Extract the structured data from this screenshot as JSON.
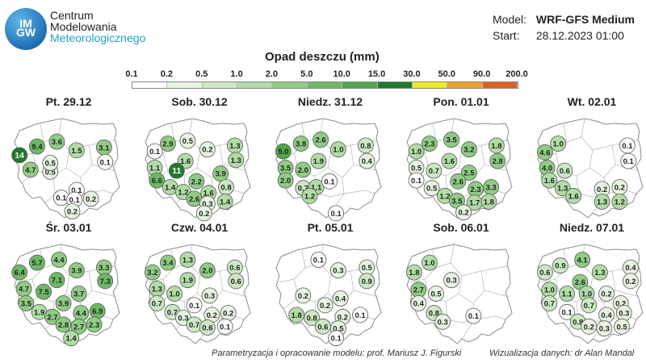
{
  "header": {
    "logo_letters": [
      "IM",
      "GW"
    ],
    "logo_lines": [
      "Centrum",
      "Modelowania",
      "Meteorologicznego"
    ],
    "model_label": "Model:",
    "model_value": "WRF-GFS Medium",
    "start_label": "Start:",
    "start_value": "28.12.2023 01:00"
  },
  "legend": {
    "title": "Opad deszczu (mm)",
    "values": [
      "0.1",
      "0.2",
      "0.5",
      "1.0",
      "2.0",
      "5.0",
      "10.0",
      "15.0",
      "30.0",
      "50.0",
      "90.0",
      "200.0"
    ],
    "colors": [
      "#ffffff",
      "#e6f3e1",
      "#cce8c4",
      "#b1dca6",
      "#8fcc84",
      "#6cba64",
      "#4ea84a",
      "#1f7a2c",
      "#ecec20",
      "#f0a02a",
      "#e06020"
    ]
  },
  "maps": [
    {
      "title": "Pt. 29.12",
      "points": [
        {
          "x": 0.06,
          "y": 0.37,
          "v": "14",
          "level": 7
        },
        {
          "x": 0.22,
          "y": 0.28,
          "v": "9.4",
          "level": 5
        },
        {
          "x": 0.4,
          "y": 0.23,
          "v": "3.6",
          "level": 4
        },
        {
          "x": 0.58,
          "y": 0.32,
          "v": "1.5",
          "level": 3
        },
        {
          "x": 0.83,
          "y": 0.29,
          "v": "3.1",
          "level": 4
        },
        {
          "x": 0.16,
          "y": 0.52,
          "v": "4.7",
          "level": 4
        },
        {
          "x": 0.34,
          "y": 0.54,
          "v": "0.5",
          "level": 1
        },
        {
          "x": 0.34,
          "y": 0.45,
          "v": "0.5",
          "level": 1
        },
        {
          "x": 0.84,
          "y": 0.44,
          "v": "0.1",
          "level": 0
        },
        {
          "x": 0.58,
          "y": 0.73,
          "v": "0.1",
          "level": 0
        },
        {
          "x": 0.44,
          "y": 0.81,
          "v": "0.1",
          "level": 0
        },
        {
          "x": 0.56,
          "y": 0.83,
          "v": "0.1",
          "level": 0
        },
        {
          "x": 0.71,
          "y": 0.82,
          "v": "0.2",
          "level": 1
        },
        {
          "x": 0.54,
          "y": 0.95,
          "v": "0.2",
          "level": 1
        }
      ]
    },
    {
      "title": "Sob. 30.12",
      "points": [
        {
          "x": 0.22,
          "y": 0.25,
          "v": "2.9",
          "level": 4
        },
        {
          "x": 0.4,
          "y": 0.22,
          "v": "0.5",
          "level": 1
        },
        {
          "x": 0.58,
          "y": 0.31,
          "v": "0.2",
          "level": 1
        },
        {
          "x": 0.83,
          "y": 0.27,
          "v": "1.3",
          "level": 3
        },
        {
          "x": 0.1,
          "y": 0.33,
          "v": "0.1",
          "level": 0
        },
        {
          "x": 0.84,
          "y": 0.42,
          "v": "1.3",
          "level": 3
        },
        {
          "x": 0.1,
          "y": 0.5,
          "v": "1.1",
          "level": 3
        },
        {
          "x": 0.38,
          "y": 0.43,
          "v": "1.6",
          "level": 3
        },
        {
          "x": 0.3,
          "y": 0.53,
          "v": "11",
          "level": 7
        },
        {
          "x": 0.7,
          "y": 0.56,
          "v": "3.9",
          "level": 4
        },
        {
          "x": 0.12,
          "y": 0.63,
          "v": "6.6",
          "level": 5
        },
        {
          "x": 0.24,
          "y": 0.7,
          "v": "1.4",
          "level": 3
        },
        {
          "x": 0.48,
          "y": 0.64,
          "v": "2.2",
          "level": 4
        },
        {
          "x": 0.75,
          "y": 0.7,
          "v": "0.8",
          "level": 2
        },
        {
          "x": 0.36,
          "y": 0.75,
          "v": "1.2",
          "level": 3
        },
        {
          "x": 0.46,
          "y": 0.82,
          "v": "2.6",
          "level": 4
        },
        {
          "x": 0.59,
          "y": 0.76,
          "v": "1.6",
          "level": 3
        },
        {
          "x": 0.58,
          "y": 0.87,
          "v": "0.3",
          "level": 1
        },
        {
          "x": 0.74,
          "y": 0.85,
          "v": "1.4",
          "level": 3
        },
        {
          "x": 0.55,
          "y": 0.97,
          "v": "0.2",
          "level": 1
        }
      ]
    },
    {
      "title": "Niedz. 31.12",
      "points": [
        {
          "x": 0.08,
          "y": 0.33,
          "v": "5.0",
          "level": 6
        },
        {
          "x": 0.24,
          "y": 0.25,
          "v": "3.8",
          "level": 4
        },
        {
          "x": 0.42,
          "y": 0.21,
          "v": "2.6",
          "level": 4
        },
        {
          "x": 0.58,
          "y": 0.31,
          "v": "1.0",
          "level": 3
        },
        {
          "x": 0.83,
          "y": 0.27,
          "v": "0.8",
          "level": 2
        },
        {
          "x": 0.4,
          "y": 0.43,
          "v": "1.9",
          "level": 3
        },
        {
          "x": 0.84,
          "y": 0.43,
          "v": "0.4",
          "level": 1
        },
        {
          "x": 0.1,
          "y": 0.5,
          "v": "3.5",
          "level": 4
        },
        {
          "x": 0.26,
          "y": 0.52,
          "v": "2.0",
          "level": 4
        },
        {
          "x": 0.1,
          "y": 0.63,
          "v": "2.0",
          "level": 4
        },
        {
          "x": 0.26,
          "y": 0.71,
          "v": "0.7",
          "level": 2
        },
        {
          "x": 0.38,
          "y": 0.7,
          "v": "1.1",
          "level": 3
        },
        {
          "x": 0.5,
          "y": 0.64,
          "v": "0.1",
          "level": 0
        },
        {
          "x": 0.32,
          "y": 0.79,
          "v": "1.2",
          "level": 3
        },
        {
          "x": 0.56,
          "y": 0.97,
          "v": "0.1",
          "level": 0
        }
      ]
    },
    {
      "title": "Pon. 01.01",
      "points": [
        {
          "x": 0.22,
          "y": 0.25,
          "v": "2.3",
          "level": 4
        },
        {
          "x": 0.42,
          "y": 0.21,
          "v": "3.5",
          "level": 4
        },
        {
          "x": 0.58,
          "y": 0.31,
          "v": "3.2",
          "level": 4
        },
        {
          "x": 0.83,
          "y": 0.27,
          "v": "1.8",
          "level": 3
        },
        {
          "x": 0.1,
          "y": 0.33,
          "v": "1.0",
          "level": 3
        },
        {
          "x": 0.4,
          "y": 0.43,
          "v": "1.6",
          "level": 3
        },
        {
          "x": 0.84,
          "y": 0.43,
          "v": "2.8",
          "level": 4
        },
        {
          "x": 0.1,
          "y": 0.5,
          "v": "0.5",
          "level": 1
        },
        {
          "x": 0.26,
          "y": 0.53,
          "v": "0.7",
          "level": 2
        },
        {
          "x": 0.58,
          "y": 0.55,
          "v": "2.5",
          "level": 4
        },
        {
          "x": 0.1,
          "y": 0.63,
          "v": "0.1",
          "level": 0
        },
        {
          "x": 0.24,
          "y": 0.71,
          "v": "0.5",
          "level": 1
        },
        {
          "x": 0.48,
          "y": 0.64,
          "v": "2.6",
          "level": 4
        },
        {
          "x": 0.64,
          "y": 0.72,
          "v": "2.3",
          "level": 4
        },
        {
          "x": 0.78,
          "y": 0.7,
          "v": "3.3",
          "level": 4
        },
        {
          "x": 0.36,
          "y": 0.79,
          "v": "1.2",
          "level": 3
        },
        {
          "x": 0.47,
          "y": 0.84,
          "v": "3.5",
          "level": 4
        },
        {
          "x": 0.63,
          "y": 0.86,
          "v": "1.7",
          "level": 3
        },
        {
          "x": 0.76,
          "y": 0.85,
          "v": "1.8",
          "level": 3
        },
        {
          "x": 0.53,
          "y": 0.96,
          "v": "0.2",
          "level": 1
        }
      ]
    },
    {
      "title": "Wt. 02.01",
      "points": [
        {
          "x": 0.2,
          "y": 0.25,
          "v": "1.0",
          "level": 3
        },
        {
          "x": 0.08,
          "y": 0.34,
          "v": "4.6",
          "level": 4
        },
        {
          "x": 0.83,
          "y": 0.27,
          "v": "0.1",
          "level": 0
        },
        {
          "x": 0.84,
          "y": 0.43,
          "v": "0.1",
          "level": 0
        },
        {
          "x": 0.1,
          "y": 0.5,
          "v": "4.0",
          "level": 4
        },
        {
          "x": 0.26,
          "y": 0.53,
          "v": "0.6",
          "level": 2
        },
        {
          "x": 0.12,
          "y": 0.63,
          "v": "1.6",
          "level": 3
        },
        {
          "x": 0.24,
          "y": 0.71,
          "v": "1.3",
          "level": 3
        },
        {
          "x": 0.34,
          "y": 0.79,
          "v": "1.6",
          "level": 3
        },
        {
          "x": 0.6,
          "y": 0.72,
          "v": "0.2",
          "level": 1
        },
        {
          "x": 0.76,
          "y": 0.7,
          "v": "0.2",
          "level": 1
        },
        {
          "x": 0.6,
          "y": 0.85,
          "v": "1.3",
          "level": 3
        },
        {
          "x": 0.76,
          "y": 0.85,
          "v": "1.2",
          "level": 3
        }
      ]
    },
    {
      "title": "Śr. 03.01",
      "points": [
        {
          "x": 0.22,
          "y": 0.18,
          "v": "5.7",
          "level": 5
        },
        {
          "x": 0.42,
          "y": 0.15,
          "v": "4.4",
          "level": 4
        },
        {
          "x": 0.58,
          "y": 0.26,
          "v": "3.9",
          "level": 4
        },
        {
          "x": 0.83,
          "y": 0.23,
          "v": "3.3",
          "level": 4
        },
        {
          "x": 0.06,
          "y": 0.28,
          "v": "6.4",
          "level": 5
        },
        {
          "x": 0.4,
          "y": 0.36,
          "v": "7.1",
          "level": 5
        },
        {
          "x": 0.84,
          "y": 0.37,
          "v": "7.3",
          "level": 5
        },
        {
          "x": 0.1,
          "y": 0.45,
          "v": "4.7",
          "level": 4
        },
        {
          "x": 0.28,
          "y": 0.48,
          "v": "7.5",
          "level": 5
        },
        {
          "x": 0.6,
          "y": 0.5,
          "v": "3.7",
          "level": 4
        },
        {
          "x": 0.12,
          "y": 0.6,
          "v": "3.5",
          "level": 4
        },
        {
          "x": 0.46,
          "y": 0.6,
          "v": "3.9",
          "level": 4
        },
        {
          "x": 0.24,
          "y": 0.69,
          "v": "1.9",
          "level": 3
        },
        {
          "x": 0.36,
          "y": 0.74,
          "v": "2.7",
          "level": 4
        },
        {
          "x": 0.62,
          "y": 0.7,
          "v": "4.4",
          "level": 4
        },
        {
          "x": 0.77,
          "y": 0.68,
          "v": "6.9",
          "level": 5
        },
        {
          "x": 0.46,
          "y": 0.82,
          "v": "2.8",
          "level": 4
        },
        {
          "x": 0.6,
          "y": 0.84,
          "v": "2.7",
          "level": 4
        },
        {
          "x": 0.74,
          "y": 0.82,
          "v": "2.3",
          "level": 4
        },
        {
          "x": 0.53,
          "y": 0.96,
          "v": "1.4",
          "level": 3
        }
      ]
    },
    {
      "title": "Czw. 04.01",
      "points": [
        {
          "x": 0.22,
          "y": 0.18,
          "v": "3.4",
          "level": 4
        },
        {
          "x": 0.4,
          "y": 0.15,
          "v": "1.3",
          "level": 3
        },
        {
          "x": 0.58,
          "y": 0.26,
          "v": "2.0",
          "level": 4
        },
        {
          "x": 0.83,
          "y": 0.23,
          "v": "0.6",
          "level": 2
        },
        {
          "x": 0.08,
          "y": 0.28,
          "v": "3.2",
          "level": 4
        },
        {
          "x": 0.4,
          "y": 0.36,
          "v": "1.9",
          "level": 3
        },
        {
          "x": 0.84,
          "y": 0.37,
          "v": "0.6",
          "level": 2
        },
        {
          "x": 0.12,
          "y": 0.45,
          "v": "1.3",
          "level": 3
        },
        {
          "x": 0.28,
          "y": 0.5,
          "v": "1.0",
          "level": 3
        },
        {
          "x": 0.6,
          "y": 0.52,
          "v": "0.3",
          "level": 1
        },
        {
          "x": 0.12,
          "y": 0.6,
          "v": "0.7",
          "level": 2
        },
        {
          "x": 0.26,
          "y": 0.69,
          "v": "0.7",
          "level": 2
        },
        {
          "x": 0.46,
          "y": 0.62,
          "v": "0.1",
          "level": 0
        },
        {
          "x": 0.36,
          "y": 0.75,
          "v": "0.3",
          "level": 1
        },
        {
          "x": 0.62,
          "y": 0.72,
          "v": "0.2",
          "level": 1
        },
        {
          "x": 0.77,
          "y": 0.7,
          "v": "0.2",
          "level": 1
        },
        {
          "x": 0.46,
          "y": 0.82,
          "v": "0.7",
          "level": 2
        },
        {
          "x": 0.58,
          "y": 0.85,
          "v": "0.6",
          "level": 2
        },
        {
          "x": 0.74,
          "y": 0.84,
          "v": "0.1",
          "level": 0
        }
      ]
    },
    {
      "title": "Pt. 05.01",
      "points": [
        {
          "x": 0.4,
          "y": 0.15,
          "v": "0.1",
          "level": 0
        },
        {
          "x": 0.58,
          "y": 0.26,
          "v": "0.3",
          "level": 1
        },
        {
          "x": 0.84,
          "y": 0.23,
          "v": "0.5",
          "level": 1
        },
        {
          "x": 0.84,
          "y": 0.37,
          "v": "0.9",
          "level": 2
        },
        {
          "x": 0.26,
          "y": 0.52,
          "v": "0.2",
          "level": 1
        },
        {
          "x": 0.6,
          "y": 0.55,
          "v": "0.4",
          "level": 1
        },
        {
          "x": 0.46,
          "y": 0.62,
          "v": "0.2",
          "level": 1
        },
        {
          "x": 0.2,
          "y": 0.72,
          "v": "1.8",
          "level": 3
        },
        {
          "x": 0.34,
          "y": 0.75,
          "v": "0.8",
          "level": 2
        },
        {
          "x": 0.62,
          "y": 0.74,
          "v": "0.2",
          "level": 1
        },
        {
          "x": 0.78,
          "y": 0.72,
          "v": "0.1",
          "level": 0
        },
        {
          "x": 0.44,
          "y": 0.84,
          "v": "0.6",
          "level": 2
        },
        {
          "x": 0.58,
          "y": 0.86,
          "v": "0.5",
          "level": 1
        },
        {
          "x": 0.56,
          "y": 0.96,
          "v": "0.1",
          "level": 0
        }
      ]
    },
    {
      "title": "Sob. 06.01",
      "points": [
        {
          "x": 0.22,
          "y": 0.18,
          "v": "1.0",
          "level": 3
        },
        {
          "x": 0.08,
          "y": 0.28,
          "v": "1.8",
          "level": 3
        },
        {
          "x": 0.42,
          "y": 0.36,
          "v": "0.3",
          "level": 1
        },
        {
          "x": 0.12,
          "y": 0.46,
          "v": "2.7",
          "level": 4
        },
        {
          "x": 0.28,
          "y": 0.5,
          "v": "0.5",
          "level": 1
        },
        {
          "x": 0.12,
          "y": 0.6,
          "v": "0.4",
          "level": 1
        },
        {
          "x": 0.26,
          "y": 0.7,
          "v": "0.8",
          "level": 2
        },
        {
          "x": 0.34,
          "y": 0.79,
          "v": "0.3",
          "level": 1
        },
        {
          "x": 0.62,
          "y": 0.73,
          "v": "0.1",
          "level": 0
        }
      ]
    },
    {
      "title": "Niedz. 07.01",
      "points": [
        {
          "x": 0.22,
          "y": 0.21,
          "v": "0.9",
          "level": 2
        },
        {
          "x": 0.42,
          "y": 0.15,
          "v": "4.1",
          "level": 4
        },
        {
          "x": 0.08,
          "y": 0.28,
          "v": "0.6",
          "level": 2
        },
        {
          "x": 0.58,
          "y": 0.28,
          "v": "1.3",
          "level": 3
        },
        {
          "x": 0.86,
          "y": 0.23,
          "v": "0.4",
          "level": 1
        },
        {
          "x": 0.4,
          "y": 0.38,
          "v": "2.6",
          "level": 4
        },
        {
          "x": 0.86,
          "y": 0.37,
          "v": "0.2",
          "level": 1
        },
        {
          "x": 0.12,
          "y": 0.46,
          "v": "1.0",
          "level": 3
        },
        {
          "x": 0.28,
          "y": 0.5,
          "v": "1.1",
          "level": 3
        },
        {
          "x": 0.46,
          "y": 0.5,
          "v": "1.0",
          "level": 3
        },
        {
          "x": 0.64,
          "y": 0.5,
          "v": "0.2",
          "level": 1
        },
        {
          "x": 0.12,
          "y": 0.6,
          "v": "0.7",
          "level": 2
        },
        {
          "x": 0.48,
          "y": 0.62,
          "v": "0.7",
          "level": 2
        },
        {
          "x": 0.77,
          "y": 0.6,
          "v": "0.2",
          "level": 1
        },
        {
          "x": 0.28,
          "y": 0.69,
          "v": "0.1",
          "level": 0
        },
        {
          "x": 0.64,
          "y": 0.72,
          "v": "0.4",
          "level": 1
        },
        {
          "x": 0.8,
          "y": 0.7,
          "v": "0.3",
          "level": 1
        },
        {
          "x": 0.38,
          "y": 0.79,
          "v": "0.8",
          "level": 2
        },
        {
          "x": 0.48,
          "y": 0.84,
          "v": "0.2",
          "level": 1
        },
        {
          "x": 0.62,
          "y": 0.86,
          "v": "0.3",
          "level": 1
        },
        {
          "x": 0.78,
          "y": 0.84,
          "v": "0.5",
          "level": 1
        }
      ]
    }
  ],
  "credits": {
    "left": "Parametryzacja i opracowanie modelu: prof. Mariusz J. Figurski",
    "right": "Wizualizacja danych: dr Alan Mandal"
  }
}
